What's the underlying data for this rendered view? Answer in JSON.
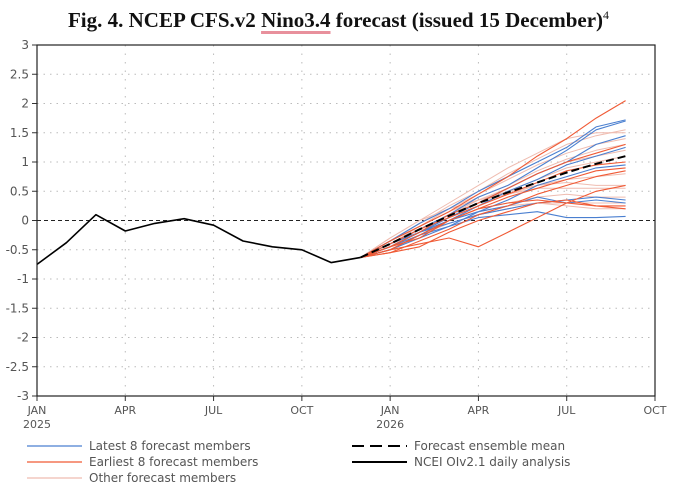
{
  "chart_data": {
    "type": "line",
    "title_prefix": "Fig. 4. NCEP CFS.v2 ",
    "title_underlined": "Nino3.4",
    "title_suffix": " forecast (issued 15 December)",
    "title_superscript": "4",
    "xlabel": "",
    "ylabel": "",
    "ylim": [
      -3,
      3
    ],
    "yticks": [
      "3",
      "2.5",
      "2",
      "1.5",
      "1",
      "0.5",
      "0",
      "-0.5",
      "-1",
      "-1.5",
      "-2",
      "-2.5",
      "-3"
    ],
    "xlim_months": [
      0,
      21
    ],
    "xticks": [
      {
        "m": 0,
        "label": "JAN",
        "sub": "2025"
      },
      {
        "m": 3,
        "label": "APR",
        "sub": ""
      },
      {
        "m": 6,
        "label": "JUL",
        "sub": ""
      },
      {
        "m": 9,
        "label": "OCT",
        "sub": ""
      },
      {
        "m": 12,
        "label": "JAN",
        "sub": "2026"
      },
      {
        "m": 15,
        "label": "APR",
        "sub": ""
      },
      {
        "m": 18,
        "label": "JUL",
        "sub": ""
      },
      {
        "m": 21,
        "label": "OCT",
        "sub": ""
      }
    ],
    "grid": true,
    "colors": {
      "latest": "#4a7fd0",
      "earliest": "#f05a35",
      "other": "#efbcb0",
      "mean": "#000000",
      "observed": "#000000"
    },
    "observed": {
      "name": "NCEI OIv2.1 daily analysis",
      "start_month": 0,
      "values": [
        -0.75,
        -0.38,
        0.1,
        -0.18,
        -0.05,
        0.03,
        -0.08,
        -0.35,
        -0.45,
        -0.5,
        -0.72,
        -0.63
      ]
    },
    "forecast_start_month": 11,
    "ensemble_mean": {
      "name": "Forecast ensemble mean",
      "values": [
        -0.63,
        -0.4,
        -0.15,
        0.08,
        0.3,
        0.48,
        0.65,
        0.82,
        0.97,
        1.1
      ]
    },
    "latest_members": {
      "name": "Latest 8 forecast members",
      "series": [
        [
          -0.63,
          -0.35,
          -0.05,
          0.2,
          0.5,
          0.75,
          1.0,
          1.25,
          1.6,
          1.72
        ],
        [
          -0.63,
          -0.4,
          -0.15,
          0.1,
          0.4,
          0.6,
          0.9,
          1.2,
          1.55,
          1.7
        ],
        [
          -0.63,
          -0.45,
          -0.2,
          0.05,
          0.3,
          0.55,
          0.8,
          1.0,
          1.3,
          1.45
        ],
        [
          -0.63,
          -0.4,
          -0.2,
          0.0,
          0.25,
          0.5,
          0.7,
          0.95,
          1.1,
          1.25
        ],
        [
          -0.63,
          -0.5,
          -0.25,
          0.0,
          0.15,
          0.35,
          0.6,
          0.75,
          0.9,
          0.95
        ],
        [
          -0.63,
          -0.45,
          -0.2,
          -0.05,
          0.1,
          0.2,
          0.3,
          0.35,
          0.4,
          0.35
        ],
        [
          -0.63,
          -0.5,
          -0.3,
          -0.1,
          0.15,
          0.25,
          0.4,
          0.3,
          0.35,
          0.3
        ],
        [
          -0.63,
          -0.45,
          -0.25,
          -0.1,
          0.05,
          0.1,
          0.15,
          0.05,
          0.05,
          0.07
        ]
      ]
    },
    "earliest_members": {
      "name": "Earliest 8 forecast members",
      "series": [
        [
          -0.63,
          -0.35,
          -0.1,
          0.15,
          0.45,
          0.75,
          1.1,
          1.4,
          1.75,
          2.05
        ],
        [
          -0.63,
          -0.45,
          -0.2,
          0.1,
          0.3,
          0.55,
          0.8,
          1.0,
          1.15,
          1.3
        ],
        [
          -0.63,
          -0.4,
          -0.15,
          0.05,
          0.25,
          0.45,
          0.65,
          0.85,
          0.95,
          1.0
        ],
        [
          -0.63,
          -0.5,
          -0.25,
          0.0,
          0.2,
          0.4,
          0.55,
          0.7,
          0.85,
          0.9
        ],
        [
          -0.63,
          -0.55,
          -0.35,
          -0.15,
          0.1,
          0.25,
          0.45,
          0.6,
          0.75,
          0.85
        ],
        [
          -0.63,
          -0.5,
          -0.4,
          -0.3,
          -0.45,
          -0.2,
          0.05,
          0.3,
          0.5,
          0.6
        ],
        [
          -0.63,
          -0.45,
          -0.3,
          0.0,
          0.2,
          0.3,
          0.35,
          0.3,
          0.25,
          0.25
        ],
        [
          -0.63,
          -0.55,
          -0.45,
          -0.2,
          0.0,
          0.15,
          0.3,
          0.35,
          0.25,
          0.2
        ]
      ]
    },
    "other_members": {
      "name": "Other forecast members",
      "series": [
        [
          -0.63,
          -0.3,
          0.0,
          0.3,
          0.6,
          0.9,
          1.15,
          1.4,
          1.5,
          1.5
        ],
        [
          -0.63,
          -0.35,
          -0.05,
          0.25,
          0.5,
          0.8,
          1.05,
          1.3,
          1.45,
          1.55
        ],
        [
          -0.63,
          -0.4,
          -0.1,
          0.2,
          0.45,
          0.7,
          0.95,
          1.15,
          1.3,
          1.4
        ],
        [
          -0.63,
          -0.35,
          -0.1,
          0.15,
          0.4,
          0.6,
          0.85,
          1.05,
          1.2,
          1.3
        ],
        [
          -0.63,
          -0.4,
          -0.15,
          0.1,
          0.35,
          0.55,
          0.8,
          1.0,
          1.1,
          1.2
        ],
        [
          -0.63,
          -0.45,
          -0.15,
          0.1,
          0.3,
          0.5,
          0.7,
          0.9,
          1.0,
          1.1
        ],
        [
          -0.63,
          -0.4,
          -0.2,
          0.05,
          0.25,
          0.45,
          0.6,
          0.7,
          0.75,
          0.8
        ],
        [
          -0.63,
          -0.3,
          0.0,
          0.2,
          0.35,
          0.45,
          0.55,
          0.55,
          0.55,
          0.55
        ],
        [
          -0.63,
          -0.45,
          -0.2,
          0.0,
          0.2,
          0.3,
          0.4,
          0.45,
          0.4,
          0.4
        ],
        [
          -0.63,
          -0.5,
          -0.25,
          -0.05,
          0.1,
          0.2,
          0.3,
          0.3,
          0.3,
          0.3
        ],
        [
          -0.63,
          -0.4,
          -0.2,
          0.0,
          0.15,
          0.25,
          0.3,
          0.25,
          0.2,
          0.2
        ],
        [
          -0.63,
          -0.35,
          -0.1,
          0.15,
          0.35,
          0.5,
          0.6,
          0.65,
          0.6,
          0.6
        ]
      ]
    }
  }
}
